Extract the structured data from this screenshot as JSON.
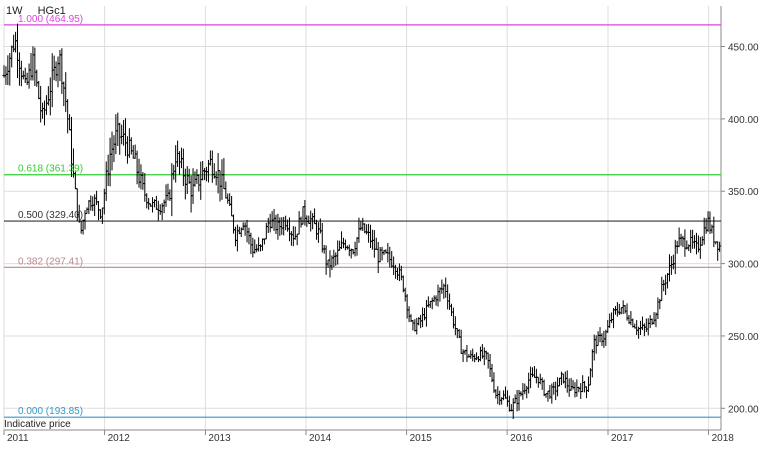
{
  "header": {
    "interval": "1W",
    "symbol": "HGc1"
  },
  "footnote": "Indicative price",
  "chart_data": {
    "type": "ohlc-bar",
    "title": "",
    "xlabel": "",
    "ylabel": "",
    "x_range": [
      "2011-01-01",
      "2018-02-15"
    ],
    "ylim": [
      185,
      478
    ],
    "y_ticks": [
      200,
      250,
      300,
      350,
      400,
      450
    ],
    "y_tick_labels": [
      "200.00",
      "250.00",
      "300.00",
      "350.00",
      "400.00",
      "450.00"
    ],
    "x_ticks": [
      "2011",
      "2012",
      "2013",
      "2014",
      "2015",
      "2016",
      "2017",
      "2018"
    ],
    "grid": true,
    "colors": {
      "bars": "#000000",
      "grid": "#dddddd",
      "axis": "#888888"
    },
    "fib_levels": [
      {
        "label": "1.000 (464.95)",
        "value": 464.95,
        "color": "#dd44dd"
      },
      {
        "label": "0.618 (361.39)",
        "value": 361.39,
        "color": "#33cc33"
      },
      {
        "label": "0.500 (329.40)",
        "value": 329.4,
        "color": "#333333"
      },
      {
        "label": "0.382 (297.41)",
        "value": 297.41,
        "color": "#bb8888"
      },
      {
        "label": "0.000 (193.85)",
        "value": 193.85,
        "color": "#3399cc"
      }
    ],
    "price_path": [
      [
        "2011-01-01",
        430
      ],
      [
        "2011-02-10",
        455
      ],
      [
        "2011-03-20",
        420
      ],
      [
        "2011-04-15",
        440
      ],
      [
        "2011-05-20",
        400
      ],
      [
        "2011-06-15",
        420
      ],
      [
        "2011-07-20",
        445
      ],
      [
        "2011-08-15",
        410
      ],
      [
        "2011-09-10",
        360
      ],
      [
        "2011-10-05",
        320
      ],
      [
        "2011-10-25",
        340
      ],
      [
        "2011-11-20",
        345
      ],
      [
        "2011-12-20",
        335
      ],
      [
        "2012-01-20",
        375
      ],
      [
        "2012-02-15",
        390
      ],
      [
        "2012-03-15",
        385
      ],
      [
        "2012-04-20",
        370
      ],
      [
        "2012-05-20",
        350
      ],
      [
        "2012-06-20",
        340
      ],
      [
        "2012-07-20",
        340
      ],
      [
        "2012-08-20",
        345
      ],
      [
        "2012-09-15",
        375
      ],
      [
        "2012-10-20",
        360
      ],
      [
        "2012-11-15",
        350
      ],
      [
        "2012-12-20",
        362
      ],
      [
        "2013-01-20",
        370
      ],
      [
        "2013-02-10",
        365
      ],
      [
        "2013-03-20",
        345
      ],
      [
        "2013-04-20",
        320
      ],
      [
        "2013-05-20",
        330
      ],
      [
        "2013-06-20",
        310
      ],
      [
        "2013-07-20",
        310
      ],
      [
        "2013-08-20",
        330
      ],
      [
        "2013-09-20",
        325
      ],
      [
        "2013-10-20",
        330
      ],
      [
        "2013-11-20",
        318
      ],
      [
        "2013-12-20",
        335
      ],
      [
        "2014-01-20",
        330
      ],
      [
        "2014-02-20",
        320
      ],
      [
        "2014-03-20",
        298
      ],
      [
        "2014-04-20",
        305
      ],
      [
        "2014-05-20",
        315
      ],
      [
        "2014-06-20",
        310
      ],
      [
        "2014-07-20",
        325
      ],
      [
        "2014-08-20",
        318
      ],
      [
        "2014-09-20",
        305
      ],
      [
        "2014-10-20",
        305
      ],
      [
        "2014-11-20",
        300
      ],
      [
        "2014-12-20",
        285
      ],
      [
        "2015-01-20",
        255
      ],
      [
        "2015-02-20",
        260
      ],
      [
        "2015-03-20",
        270
      ],
      [
        "2015-04-20",
        278
      ],
      [
        "2015-05-20",
        285
      ],
      [
        "2015-06-20",
        260
      ],
      [
        "2015-07-20",
        240
      ],
      [
        "2015-08-20",
        235
      ],
      [
        "2015-09-20",
        237
      ],
      [
        "2015-10-20",
        235
      ],
      [
        "2015-11-20",
        210
      ],
      [
        "2015-12-20",
        208
      ],
      [
        "2016-01-15",
        200
      ],
      [
        "2016-02-20",
        210
      ],
      [
        "2016-03-20",
        220
      ],
      [
        "2016-04-20",
        222
      ],
      [
        "2016-05-20",
        210
      ],
      [
        "2016-06-20",
        212
      ],
      [
        "2016-07-20",
        222
      ],
      [
        "2016-08-20",
        212
      ],
      [
        "2016-09-20",
        215
      ],
      [
        "2016-10-20",
        215
      ],
      [
        "2016-11-10",
        245
      ],
      [
        "2016-12-20",
        250
      ],
      [
        "2017-01-20",
        265
      ],
      [
        "2017-02-20",
        270
      ],
      [
        "2017-03-20",
        262
      ],
      [
        "2017-04-20",
        255
      ],
      [
        "2017-05-20",
        255
      ],
      [
        "2017-06-20",
        265
      ],
      [
        "2017-07-20",
        285
      ],
      [
        "2017-08-20",
        300
      ],
      [
        "2017-09-10",
        315
      ],
      [
        "2017-10-20",
        315
      ],
      [
        "2017-11-20",
        310
      ],
      [
        "2017-12-28",
        330
      ],
      [
        "2018-01-20",
        318
      ],
      [
        "2018-02-10",
        312
      ]
    ]
  }
}
